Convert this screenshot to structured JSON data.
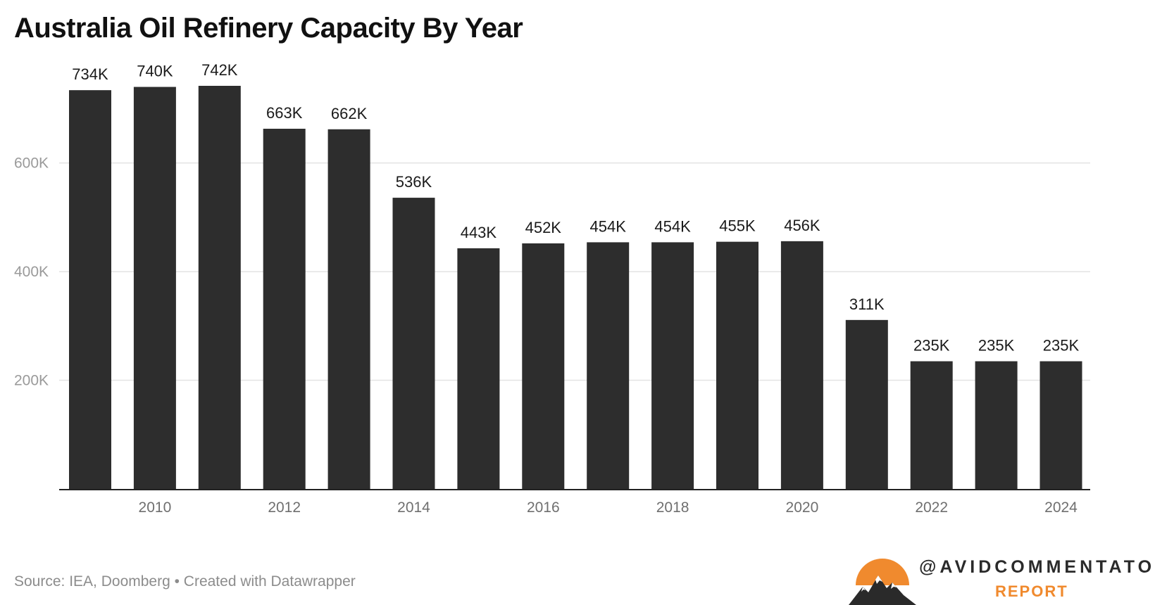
{
  "chart_data": {
    "type": "bar",
    "title": "Australia Oil Refinery Capacity By Year",
    "categories": [
      "2009",
      "2010",
      "2011",
      "2012",
      "2013",
      "2014",
      "2015",
      "2016",
      "2017",
      "2018",
      "2019",
      "2020",
      "2021",
      "2022",
      "2023",
      "2024"
    ],
    "values": [
      734000,
      740000,
      742000,
      663000,
      662000,
      536000,
      443000,
      452000,
      454000,
      454000,
      455000,
      456000,
      311000,
      235000,
      235000,
      235000
    ],
    "value_labels": [
      "734K",
      "740K",
      "742K",
      "663K",
      "662K",
      "536K",
      "443K",
      "452K",
      "454K",
      "454K",
      "455K",
      "456K",
      "311K",
      "235K",
      "235K",
      "235K"
    ],
    "x_tick_labels": [
      "2010",
      "2012",
      "2014",
      "2016",
      "2018",
      "2020",
      "2022",
      "2024"
    ],
    "y_ticks": [
      200000,
      400000,
      600000
    ],
    "y_tick_labels": [
      "200K",
      "400K",
      "600K"
    ],
    "ylim": [
      0,
      742000
    ],
    "xlabel": "",
    "ylabel": "",
    "grid": true,
    "bar_color": "#2d2d2d",
    "grid_color": "#e3e3e3",
    "axis_color": "#222222"
  },
  "footer": {
    "source": "Source: IEA, Doomberg • Created with Datawrapper"
  },
  "logo": {
    "handle": "@AVIDCOMMENTATOR",
    "sub": "REPORT",
    "emblem": "mountain-sun-icon",
    "accent_color": "#f08a2e"
  }
}
